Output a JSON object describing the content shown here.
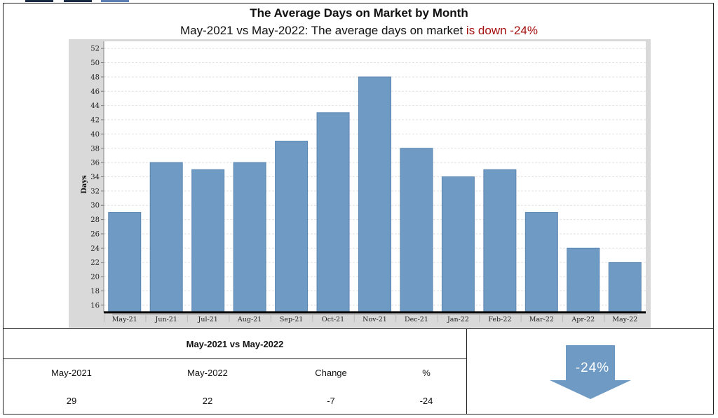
{
  "title": "The Average Days on Market by Month",
  "subtitle": {
    "prefix": "May-2021 vs May-2022: The average days on market ",
    "highlight": "is down -24%"
  },
  "colors": {
    "bar": "#6e9ac4",
    "highlight": "#a50f0f",
    "arrow": "#6e9ac4"
  },
  "chart_data": {
    "type": "bar",
    "title": "The Average Days on Market by Month",
    "xlabel": "",
    "ylabel": "Days",
    "categories": [
      "May-21",
      "Jun-21",
      "Jul-21",
      "Aug-21",
      "Sep-21",
      "Oct-21",
      "Nov-21",
      "Dec-21",
      "Jan-22",
      "Feb-22",
      "Mar-22",
      "Apr-22",
      "May-22"
    ],
    "values": [
      29,
      36,
      35,
      36,
      39,
      43,
      48,
      38,
      34,
      35,
      29,
      24,
      22
    ],
    "ylim": [
      15,
      53
    ],
    "yticks": [
      16,
      18,
      20,
      22,
      24,
      26,
      28,
      30,
      32,
      34,
      36,
      38,
      40,
      42,
      44,
      46,
      48,
      50,
      52
    ],
    "grid": true
  },
  "summary": {
    "heading": "May-2021 vs May-2022",
    "headers": [
      "May-2021",
      "May-2022",
      "Change",
      "%"
    ],
    "values": [
      "29",
      "22",
      "-7",
      "-24"
    ]
  },
  "indicator": {
    "text": "-24%",
    "icon": "down-arrow-icon"
  }
}
